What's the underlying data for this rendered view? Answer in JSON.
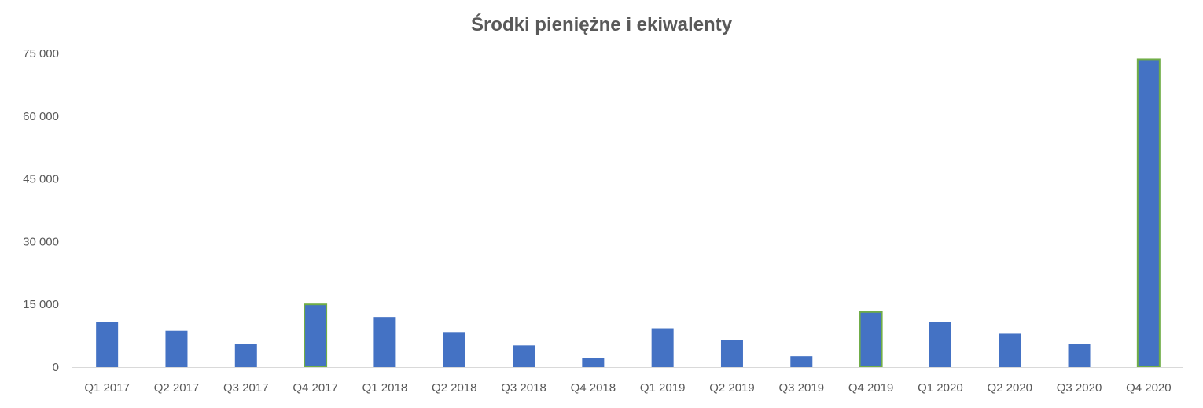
{
  "chart_data": {
    "type": "bar",
    "title": "Środki pieniężne i ekiwalenty",
    "xlabel": "",
    "ylabel": "",
    "ylim": [
      0,
      75000
    ],
    "y_ticks": [
      0,
      15000,
      30000,
      45000,
      60000,
      75000
    ],
    "y_tick_labels": [
      "0",
      "15 000",
      "30 000",
      "45 000",
      "60 000",
      "75 000"
    ],
    "grid": false,
    "categories": [
      "Q1 2017",
      "Q2 2017",
      "Q3 2017",
      "Q4 2017",
      "Q1 2018",
      "Q2 2018",
      "Q3 2018",
      "Q4 2018",
      "Q1 2019",
      "Q2 2019",
      "Q3 2019",
      "Q4 2019",
      "Q1 2020",
      "Q2 2020",
      "Q3 2020",
      "Q4 2020"
    ],
    "values": [
      10800,
      8700,
      5600,
      15000,
      12000,
      8400,
      5200,
      2200,
      9300,
      6500,
      2600,
      13200,
      10800,
      8000,
      5600,
      73600
    ],
    "highlighted": [
      "Q4 2017",
      "Q4 2019",
      "Q4 2020"
    ],
    "colors": {
      "bar": "#4472C4",
      "highlight_outline": "#70AD47",
      "axis": "#D9D9D9",
      "text": "#595959"
    }
  }
}
